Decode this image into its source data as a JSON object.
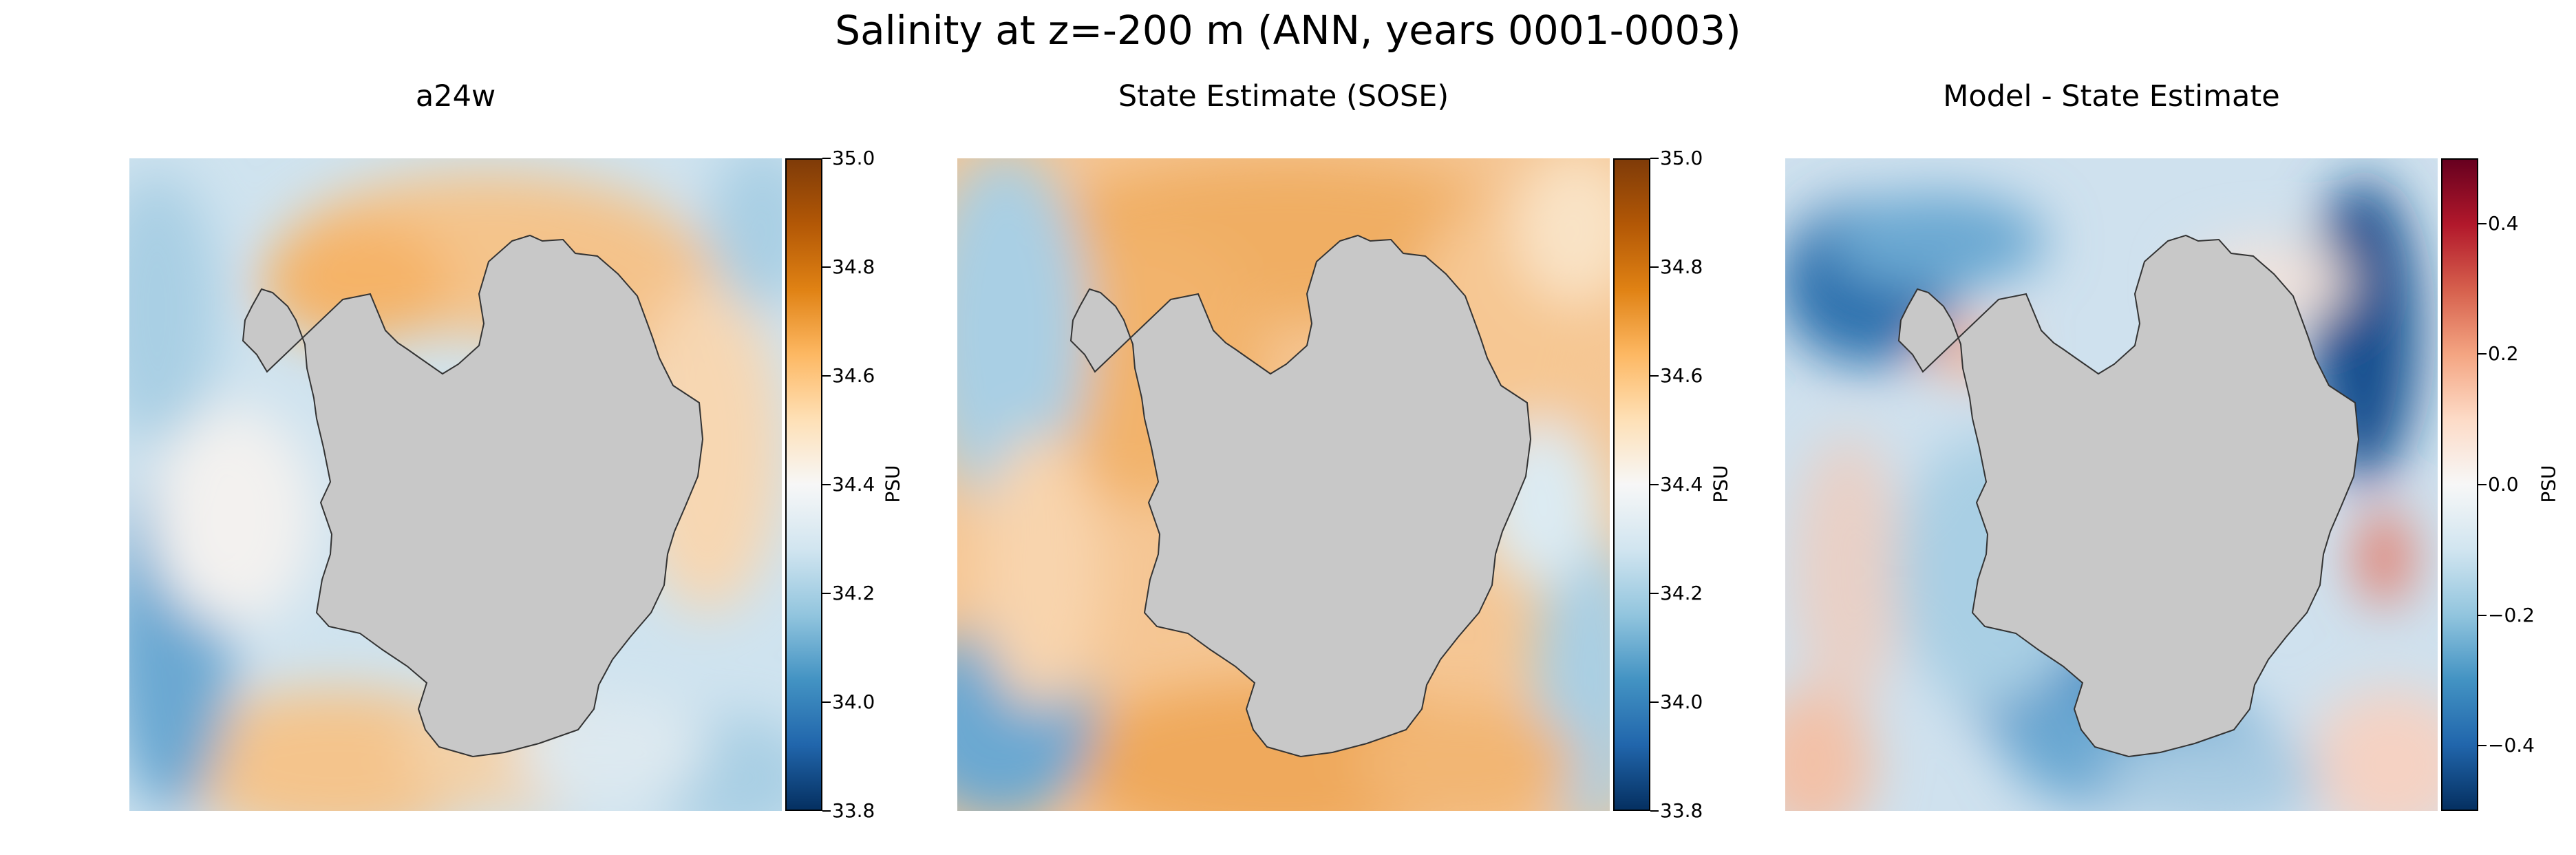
{
  "figure": {
    "title": "Salinity at z=-200 m (ANN, years 0001-0003)"
  },
  "colors": {
    "land": "#c8c8c8",
    "coast": "#333333",
    "diverging_low": "#053061",
    "diverging_mid": "#f7f7f7",
    "diverging_high": "#67001f",
    "salinity_low": "#2166ac",
    "salinity_high": "#b35806"
  },
  "chart_data": [
    {
      "type": "heatmap",
      "title": "a24w",
      "colorbar": {
        "label": "PSU",
        "range": [
          33.8,
          35.0
        ],
        "ticks": [
          "35.0",
          "34.8",
          "34.6",
          "34.4",
          "34.2",
          "34.0",
          "33.8"
        ],
        "colormap": "salinity-blue-orange"
      },
      "description_regions": {
        "north_ring": "orange ~34.6",
        "coast": "blue ~34.2",
        "outer_corners": "blue ~34.0"
      }
    },
    {
      "type": "heatmap",
      "title": "State Estimate (SOSE)",
      "colorbar": {
        "label": "PSU",
        "range": [
          33.8,
          35.0
        ],
        "ticks": [
          "35.0",
          "34.8",
          "34.6",
          "34.4",
          "34.2",
          "34.0",
          "33.8"
        ],
        "colormap": "salinity-blue-orange"
      }
    },
    {
      "type": "heatmap",
      "title": "Model - State Estimate",
      "colorbar": {
        "label": "PSU",
        "range": [
          -0.5,
          0.5
        ],
        "ticks": [
          "0.4",
          "0.2",
          "0.0",
          "−0.2",
          "−0.4"
        ],
        "colormap": "RdBu_r"
      }
    }
  ]
}
